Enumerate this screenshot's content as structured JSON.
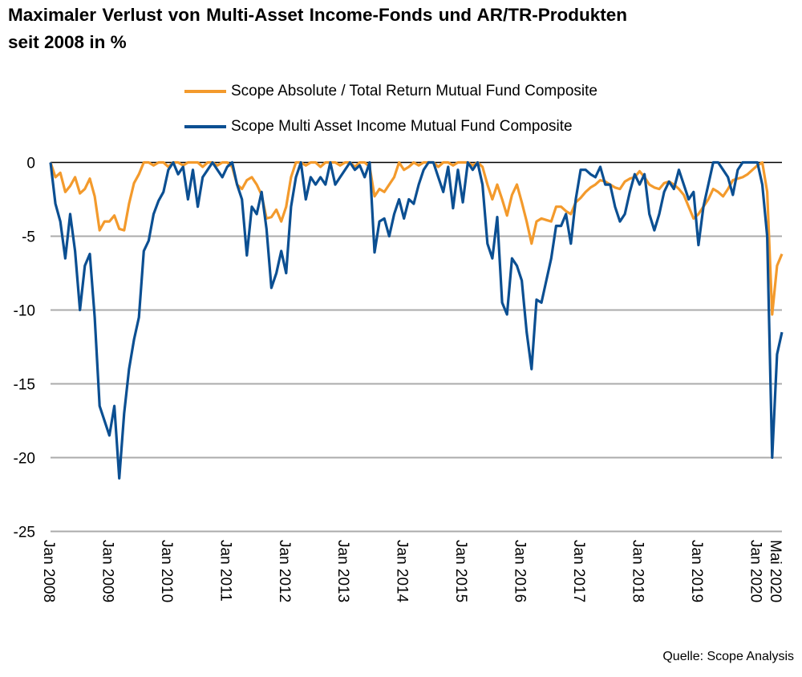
{
  "title": "Maximaler Verlust von Multi-Asset Income-Fonds und AR/TR-Produkten seit 2008 in %",
  "source": "Quelle: Scope Analysis",
  "colors": {
    "orange": "#F39A2C",
    "blue": "#0B4F92",
    "grid": "#ABABAB"
  },
  "chart_data": {
    "type": "line",
    "title": "Maximaler Verlust von Multi-Asset Income-Fonds und AR/TR-Produkten seit 2008 in %",
    "xlabel": "",
    "ylabel": "",
    "x_unit": "months since Jan 2008 (monthly samples)",
    "xlim_months": [
      0,
      149
    ],
    "ylim": [
      -25,
      0
    ],
    "yticks": [
      0,
      -5,
      -10,
      -15,
      -20,
      -25
    ],
    "ytick_labels": [
      "0",
      "-5",
      "-10",
      "-15",
      "-20",
      "-25"
    ],
    "xticks_months": [
      0,
      12,
      24,
      36,
      48,
      60,
      72,
      84,
      96,
      108,
      120,
      132,
      144,
      148
    ],
    "xtick_labels": [
      "Jan 2008",
      "Jan 2009",
      "Jan 2010",
      "Jan 2011",
      "Jan 2012",
      "Jan 2013",
      "Jan 2014",
      "Jan 2015",
      "Jan 2016",
      "Jan 2017",
      "Jan 2018",
      "Jan 2019",
      "Jan 2020",
      "Mai 2020"
    ],
    "grid": true,
    "legend_position": "top-center",
    "series": [
      {
        "name": "Scope Absolute / Total Return Mutual Fund Composite",
        "color": "#F39A2C",
        "values": [
          0,
          -1,
          -0.7,
          -2,
          -1.6,
          -1,
          -2.1,
          -1.8,
          -1.1,
          -2.3,
          -4.6,
          -4,
          -4,
          -3.6,
          -4.5,
          -4.6,
          -2.8,
          -1.4,
          -0.8,
          0,
          0,
          -0.2,
          0,
          0,
          -0.3,
          0,
          0,
          -0.2,
          0,
          0,
          0,
          -0.3,
          0,
          0,
          -0.2,
          0,
          0,
          -0.3,
          -1.5,
          -1.8,
          -1.2,
          -1,
          -1.5,
          -2.2,
          -3.8,
          -3.7,
          -3.2,
          -4,
          -3,
          -1,
          0,
          0,
          -0.2,
          0,
          0,
          -0.3,
          0,
          0,
          0,
          -0.2,
          0,
          0,
          -0.3,
          0,
          0,
          -0.3,
          -2.3,
          -1.8,
          -2,
          -1.5,
          -1,
          0,
          -0.5,
          -0.3,
          0,
          -0.2,
          0,
          0,
          0,
          -0.3,
          0,
          0,
          -0.2,
          0,
          0,
          0,
          -0.2,
          0,
          -0.3,
          -1.5,
          -2.5,
          -1.5,
          -2.5,
          -3.6,
          -2.2,
          -1.5,
          -2.7,
          -4,
          -5.5,
          -4,
          -3.8,
          -3.9,
          -4,
          -3,
          -3,
          -3.3,
          -3.5,
          -2.7,
          -2.4,
          -2,
          -1.7,
          -1.5,
          -1.2,
          -1.3,
          -1.5,
          -1.7,
          -1.8,
          -1.3,
          -1.1,
          -1,
          -0.6,
          -1,
          -1.5,
          -1.7,
          -1.8,
          -1.4,
          -1.3,
          -1.5,
          -1.8,
          -2.2,
          -3,
          -3.8,
          -3.5,
          -3,
          -2.5,
          -1.8,
          -2,
          -2.3,
          -1.8,
          -1.2,
          -1.1,
          -1,
          -0.8,
          -0.5,
          -0.2,
          0,
          -2,
          -10.3,
          -7,
          -6.2
        ]
      },
      {
        "name": "Scope Multi Asset Income Mutual Fund Composite",
        "color": "#0B4F92",
        "values": [
          0,
          -2.8,
          -4,
          -6.5,
          -3.5,
          -6,
          -10,
          -7,
          -6.2,
          -10.5,
          -16.5,
          -17.5,
          -18.5,
          -16.5,
          -21.4,
          -17,
          -14,
          -12,
          -10.5,
          -6,
          -5.3,
          -3.5,
          -2.6,
          -2,
          -0.5,
          0,
          -0.8,
          -0.3,
          -2.5,
          -0.5,
          -3,
          -1,
          -0.5,
          0,
          -0.5,
          -1,
          -0.3,
          0,
          -1.5,
          -2.5,
          -6.3,
          -3,
          -3.5,
          -2,
          -4.5,
          -8.5,
          -7.5,
          -6,
          -7.5,
          -3,
          -1,
          0,
          -2.5,
          -1,
          -1.5,
          -1,
          -1.5,
          0,
          -1.5,
          -1,
          -0.5,
          0,
          -0.5,
          -0.2,
          -1,
          0,
          -6.1,
          -4,
          -3.8,
          -5,
          -3.5,
          -2.5,
          -3.8,
          -2.5,
          -2.8,
          -1.5,
          -0.5,
          0,
          0,
          -1,
          -2,
          -0.3,
          -3.1,
          -0.5,
          -2.7,
          0,
          -0.5,
          0,
          -1.5,
          -5.5,
          -6.5,
          -3.7,
          -9.5,
          -10.3,
          -6.5,
          -7,
          -8,
          -11.5,
          -14,
          -9.3,
          -9.5,
          -8,
          -6.5,
          -4.3,
          -4.3,
          -3.5,
          -5.5,
          -2.5,
          -0.5,
          -0.5,
          -0.8,
          -1,
          -0.3,
          -1.5,
          -1.5,
          -3,
          -4,
          -3.5,
          -2,
          -0.8,
          -1.5,
          -0.8,
          -3.5,
          -4.6,
          -3.5,
          -2,
          -1.3,
          -1.8,
          -0.5,
          -1.5,
          -2.5,
          -2,
          -5.6,
          -3,
          -1.5,
          0,
          0,
          -0.5,
          -1,
          -2.2,
          -0.5,
          0,
          0,
          0,
          0,
          -1.5,
          -5,
          -20,
          -13,
          -11.5
        ]
      }
    ]
  }
}
